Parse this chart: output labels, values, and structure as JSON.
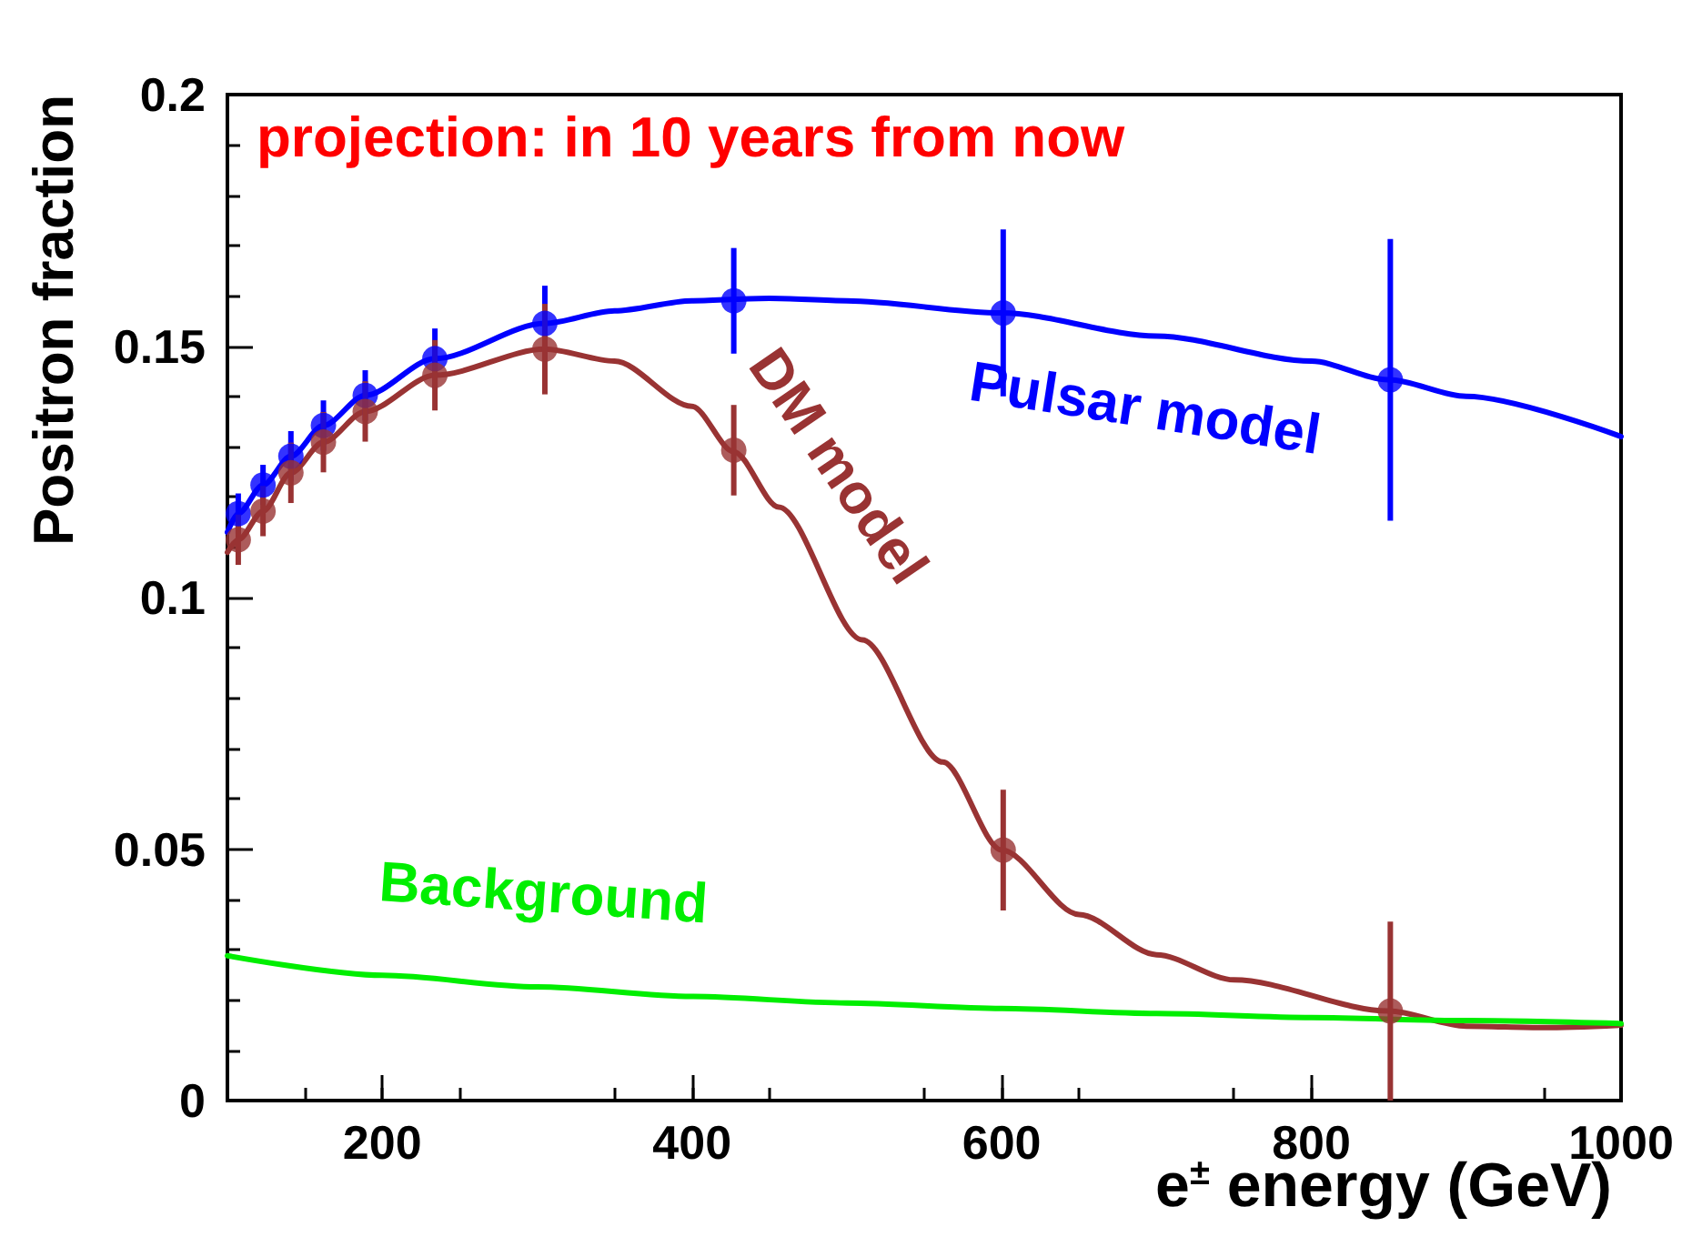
{
  "chart_data": {
    "type": "line",
    "title": "projection: in 10 years from now",
    "xlabel": "e$^{±}$ energy (GeV)",
    "ylabel": "Positron fraction",
    "xlim": [
      100,
      1000
    ],
    "xticks": [
      200,
      400,
      600,
      800,
      1000
    ],
    "ylim": [
      0,
      0.2
    ],
    "yticks": [
      0,
      0.05,
      0.1,
      0.15,
      0.2
    ],
    "grid": false,
    "legend": false,
    "line_style": "solid",
    "series": [
      {
        "name": "Pulsar model",
        "marker": "none",
        "color": "#0000ff",
        "x": [
          100,
          107,
          123,
          141,
          162,
          189,
          234,
          305,
          350,
          400,
          450,
          500,
          600,
          700,
          800,
          850,
          900,
          1000
        ],
        "values": [
          0.113,
          0.1167,
          0.1224,
          0.1281,
          0.1342,
          0.1402,
          0.1475,
          0.1545,
          0.157,
          0.159,
          0.1595,
          0.159,
          0.1566,
          0.152,
          0.147,
          0.1433,
          0.14,
          0.132
        ]
      },
      {
        "name": "DM model",
        "marker": "none",
        "color": "#993333",
        "x": [
          100,
          107,
          123,
          141,
          162,
          189,
          234,
          305,
          350,
          400,
          427,
          456,
          510,
          562,
          600,
          650,
          700,
          750,
          850,
          900,
          950,
          1000
        ],
        "values": [
          0.109,
          0.1115,
          0.1172,
          0.1248,
          0.1309,
          0.137,
          0.1442,
          0.1494,
          0.147,
          0.138,
          0.129,
          0.118,
          0.0916,
          0.0673,
          0.0498,
          0.037,
          0.029,
          0.024,
          0.0178,
          0.0148,
          0.0145,
          0.015
        ]
      },
      {
        "name": "Background",
        "marker": "none",
        "color": "#00ee00",
        "x": [
          100,
          200,
          300,
          400,
          500,
          600,
          700,
          800,
          900,
          1000
        ],
        "values": [
          0.0288,
          0.0249,
          0.0226,
          0.0207,
          0.0194,
          0.0183,
          0.0173,
          0.0165,
          0.0159,
          0.0153
        ]
      },
      {
        "type": "scatter",
        "marker": "circle",
        "color": "#0000ff",
        "x": [
          107,
          123,
          141,
          162,
          189,
          234,
          305,
          427,
          601,
          851
        ],
        "values": [
          0.1167,
          0.1224,
          0.1281,
          0.1342,
          0.1402,
          0.1475,
          0.1545,
          0.159,
          0.1566,
          0.1433
        ],
        "errors": [
          0.004,
          0.004,
          0.005,
          0.005,
          0.005,
          0.006,
          0.0075,
          0.0105,
          0.0166,
          0.028
        ]
      },
      {
        "type": "scatter",
        "marker": "circle",
        "color": "#993333",
        "x": [
          107,
          123,
          141,
          162,
          189,
          234,
          305,
          427,
          601,
          851
        ],
        "values": [
          0.1115,
          0.1172,
          0.1248,
          0.1309,
          0.137,
          0.1442,
          0.1494,
          0.1293,
          0.0498,
          0.0178
        ],
        "errors": [
          0.005,
          0.005,
          0.006,
          0.006,
          0.006,
          0.007,
          0.009,
          0.009,
          0.012,
          0.0178
        ]
      }
    ]
  }
}
